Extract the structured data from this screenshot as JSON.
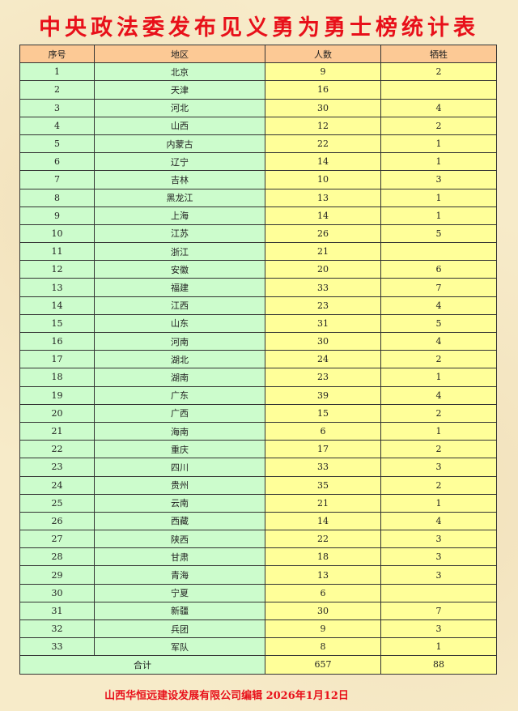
{
  "title": "中央政法委发布见义勇为勇士榜统计表",
  "table": {
    "headers": [
      "序号",
      "地区",
      "人数",
      "牺牲"
    ],
    "rows": [
      [
        "1",
        "北京",
        "9",
        "2"
      ],
      [
        "2",
        "天津",
        "16",
        ""
      ],
      [
        "3",
        "河北",
        "30",
        "4"
      ],
      [
        "4",
        "山西",
        "12",
        "2"
      ],
      [
        "5",
        "内蒙古",
        "22",
        "1"
      ],
      [
        "6",
        "辽宁",
        "14",
        "1"
      ],
      [
        "7",
        "吉林",
        "10",
        "3"
      ],
      [
        "8",
        "黑龙江",
        "13",
        "1"
      ],
      [
        "9",
        "上海",
        "14",
        "1"
      ],
      [
        "10",
        "江苏",
        "26",
        "5"
      ],
      [
        "11",
        "浙江",
        "21",
        ""
      ],
      [
        "12",
        "安徽",
        "20",
        "6"
      ],
      [
        "13",
        "福建",
        "33",
        "7"
      ],
      [
        "14",
        "江西",
        "23",
        "4"
      ],
      [
        "15",
        "山东",
        "31",
        "5"
      ],
      [
        "16",
        "河南",
        "30",
        "4"
      ],
      [
        "17",
        "湖北",
        "24",
        "2"
      ],
      [
        "18",
        "湖南",
        "23",
        "1"
      ],
      [
        "19",
        "广东",
        "39",
        "4"
      ],
      [
        "20",
        "广西",
        "15",
        "2"
      ],
      [
        "21",
        "海南",
        "6",
        "1"
      ],
      [
        "22",
        "重庆",
        "17",
        "2"
      ],
      [
        "23",
        "四川",
        "33",
        "3"
      ],
      [
        "24",
        "贵州",
        "35",
        "2"
      ],
      [
        "25",
        "云南",
        "21",
        "1"
      ],
      [
        "26",
        "西藏",
        "14",
        "4"
      ],
      [
        "27",
        "陕西",
        "22",
        "3"
      ],
      [
        "28",
        "甘肃",
        "18",
        "3"
      ],
      [
        "29",
        "青海",
        "13",
        "3"
      ],
      [
        "30",
        "宁夏",
        "6",
        ""
      ],
      [
        "31",
        "新疆",
        "30",
        "7"
      ],
      [
        "32",
        "兵团",
        "9",
        "3"
      ],
      [
        "33",
        "军队",
        "8",
        "1"
      ]
    ],
    "total": {
      "label": "合计",
      "people": "657",
      "sacrificed": "88"
    }
  },
  "footer": "山西华恒远建设发展有限公司编辑  2026年1月12日",
  "colors": {
    "header": "#fcc995",
    "left_columns": "#ccfccc",
    "right_columns": "#ffff99",
    "title": "#e8101a"
  }
}
